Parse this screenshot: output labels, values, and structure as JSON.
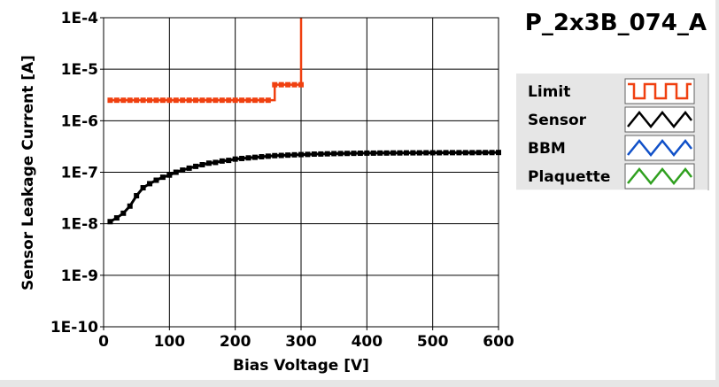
{
  "chart_data": {
    "type": "line",
    "title": "P_2x3B_074_A",
    "xlabel": "Bias Voltage [V]",
    "ylabel": "Sensor Leakage Current [A]",
    "x_scale": "linear",
    "y_scale": "log",
    "xlim": [
      0,
      600
    ],
    "ylim": [
      1e-10,
      0.0001
    ],
    "x_ticks": [
      0,
      100,
      200,
      300,
      400,
      500,
      600
    ],
    "x_tick_labels": [
      "0",
      "100",
      "200",
      "300",
      "400",
      "500",
      "600"
    ],
    "y_ticks": [
      1e-10,
      1e-09,
      1e-08,
      1e-07,
      1e-06,
      1e-05,
      0.0001
    ],
    "y_tick_labels": [
      "1E-10",
      "1E-9",
      "1E-8",
      "1E-7",
      "1E-6",
      "1E-5",
      "1E-4"
    ],
    "grid": true,
    "legend_position": "right",
    "series": [
      {
        "name": "Limit",
        "color": "#f04010",
        "x": [
          10,
          20,
          30,
          40,
          50,
          60,
          70,
          80,
          90,
          100,
          110,
          120,
          130,
          140,
          150,
          160,
          170,
          180,
          190,
          200,
          210,
          220,
          230,
          240,
          250,
          260,
          270,
          280,
          290,
          300
        ],
        "y": [
          2.5e-06,
          2.5e-06,
          2.5e-06,
          2.5e-06,
          2.5e-06,
          2.5e-06,
          2.5e-06,
          2.5e-06,
          2.5e-06,
          2.5e-06,
          2.5e-06,
          2.5e-06,
          2.5e-06,
          2.5e-06,
          2.5e-06,
          2.5e-06,
          2.5e-06,
          2.5e-06,
          2.5e-06,
          2.5e-06,
          2.5e-06,
          2.5e-06,
          2.5e-06,
          2.5e-06,
          2.5e-06,
          5e-06,
          5e-06,
          5e-06,
          5e-06,
          5e-06
        ],
        "final_step": {
          "x": 300,
          "y": 0.0001
        }
      },
      {
        "name": "Sensor",
        "color": "#000000",
        "x": [
          10,
          20,
          30,
          40,
          50,
          60,
          70,
          80,
          90,
          100,
          110,
          120,
          130,
          140,
          150,
          160,
          170,
          180,
          190,
          200,
          210,
          220,
          230,
          240,
          250,
          260,
          270,
          280,
          290,
          300,
          310,
          320,
          330,
          340,
          350,
          360,
          370,
          380,
          390,
          400,
          410,
          420,
          430,
          440,
          450,
          460,
          470,
          480,
          490,
          500,
          510,
          520,
          530,
          540,
          550,
          560,
          570,
          580,
          590,
          600
        ],
        "y": [
          1.1e-08,
          1.3e-08,
          1.6e-08,
          2.2e-08,
          3.5e-08,
          5e-08,
          6e-08,
          7e-08,
          8e-08,
          8.8e-08,
          1e-07,
          1.1e-07,
          1.2e-07,
          1.3e-07,
          1.4e-07,
          1.5e-07,
          1.55e-07,
          1.65e-07,
          1.7e-07,
          1.8e-07,
          1.85e-07,
          1.9e-07,
          1.95e-07,
          2e-07,
          2.05e-07,
          2.1e-07,
          2.12e-07,
          2.15e-07,
          2.18e-07,
          2.2e-07,
          2.22e-07,
          2.25e-07,
          2.26e-07,
          2.28e-07,
          2.3e-07,
          2.31e-07,
          2.32e-07,
          2.33e-07,
          2.34e-07,
          2.35e-07,
          2.35e-07,
          2.36e-07,
          2.36e-07,
          2.37e-07,
          2.37e-07,
          2.38e-07,
          2.38e-07,
          2.38e-07,
          2.39e-07,
          2.39e-07,
          2.39e-07,
          2.4e-07,
          2.4e-07,
          2.4e-07,
          2.4e-07,
          2.4e-07,
          2.41e-07,
          2.41e-07,
          2.41e-07,
          2.42e-07
        ]
      },
      {
        "name": "BBM",
        "color": "#1050c8",
        "x": [],
        "y": []
      },
      {
        "name": "Plaquette",
        "color": "#30a020",
        "x": [],
        "y": []
      }
    ]
  }
}
